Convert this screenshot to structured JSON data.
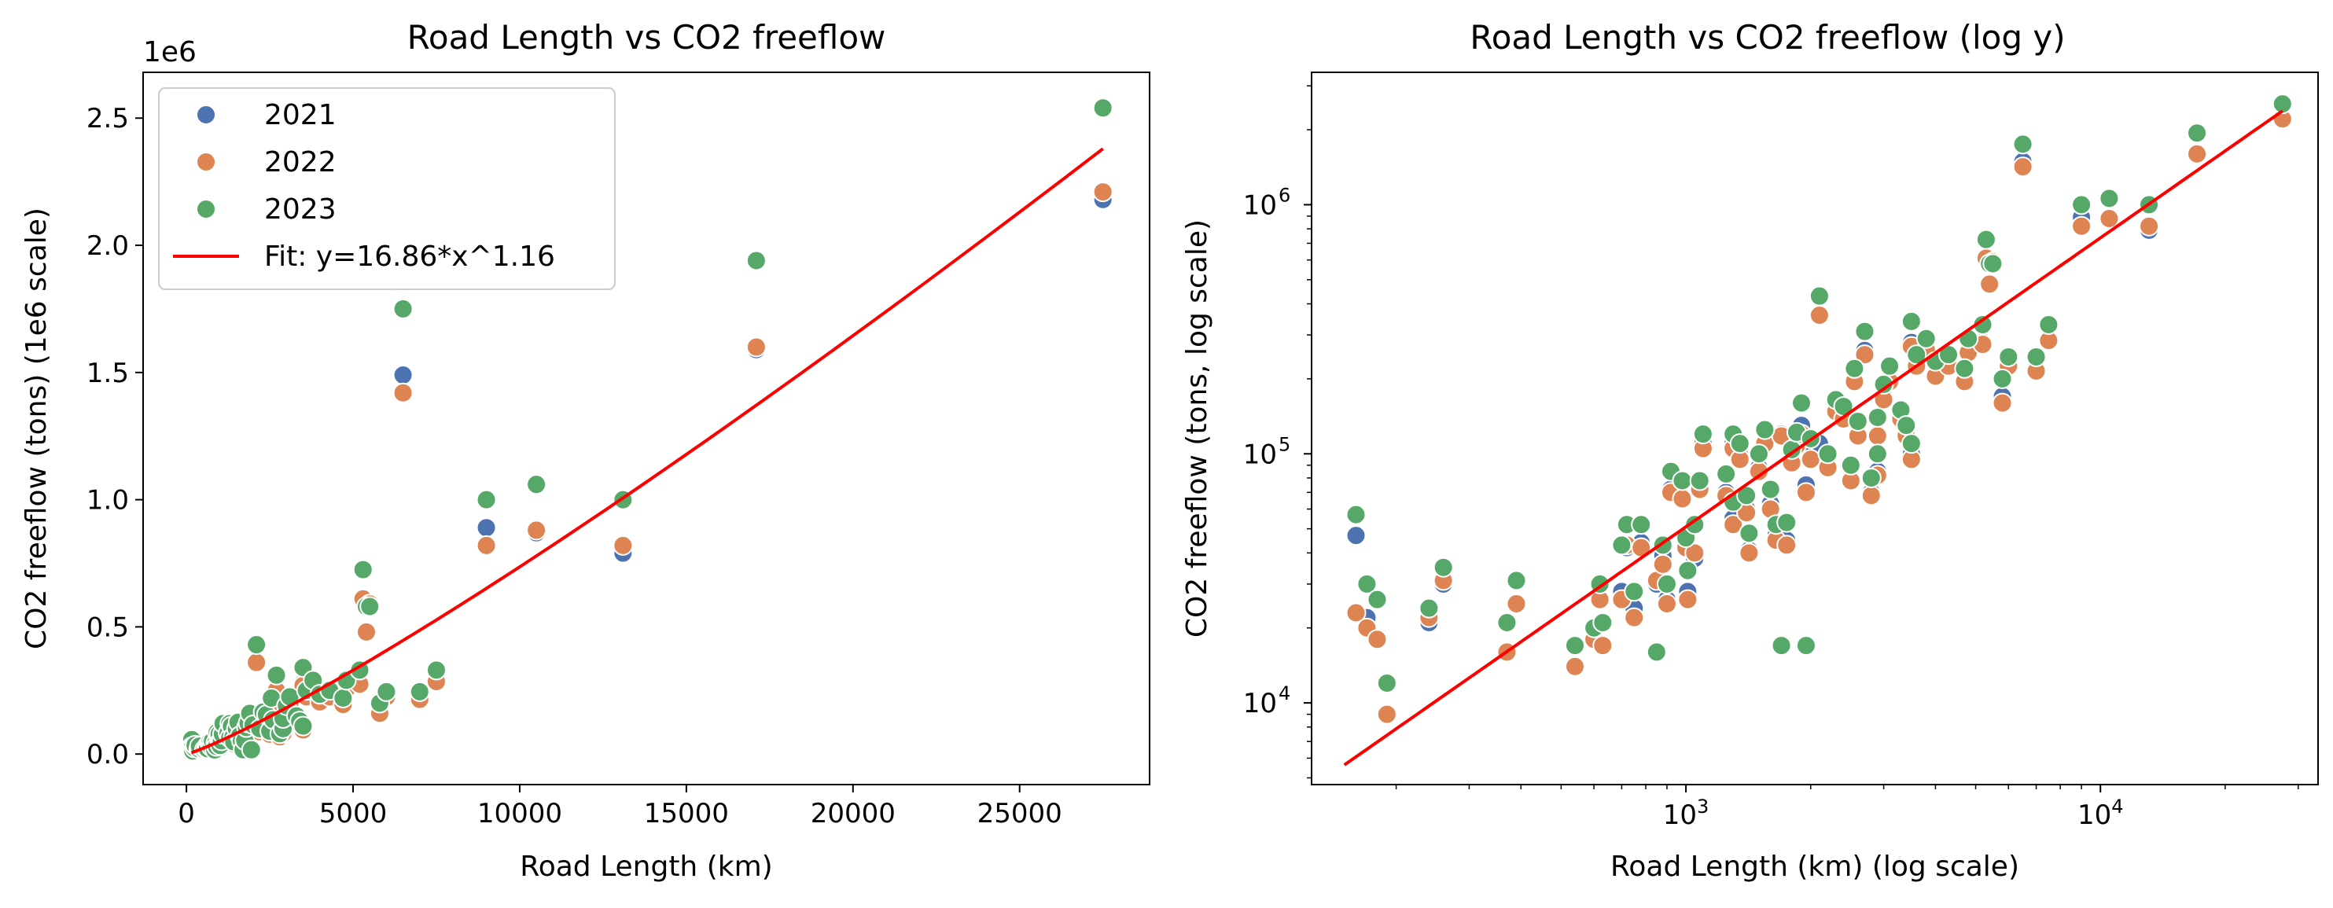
{
  "colors": {
    "2021": "#4c72b0",
    "2022": "#dd8452",
    "2023": "#55a868",
    "fit": "#ff0000"
  },
  "chart_data": [
    {
      "type": "scatter",
      "title": "Road Length vs CO2 freeflow",
      "xlabel": "Road Length (km)",
      "ylabel": "CO2 freeflow (tons) (1e6 scale)",
      "y_offset_label": "1e6",
      "xscale": "linear",
      "yscale": "linear",
      "xlim": [
        -1300,
        28900
      ],
      "ylim": [
        -0.12,
        2.68
      ],
      "xticks": [
        0,
        5000,
        10000,
        15000,
        20000,
        25000
      ],
      "xtick_labels": [
        "0",
        "5000",
        "10000",
        "15000",
        "20000",
        "25000"
      ],
      "yticks": [
        0,
        0.5,
        1.0,
        1.5,
        2.0,
        2.5
      ],
      "ytick_labels": [
        "0.0",
        "0.5",
        "1.0",
        "1.5",
        "2.0",
        "2.5"
      ],
      "y_units": "millions",
      "grid": false,
      "legend": {
        "position": "upper left",
        "entries": [
          "2021",
          "2022",
          "2023",
          "Fit: y=16.86*x^1.16"
        ]
      },
      "fit": {
        "label": "Fit: y=16.86*x^1.16",
        "a": 16.86,
        "b": 1.16,
        "x_range": [
          150,
          27500
        ]
      },
      "series": [
        {
          "name": "2021",
          "points": [
            [
              160,
              0.047
            ],
            [
              170,
              0.022
            ],
            [
              180,
              0.018
            ],
            [
              190,
              0.009
            ],
            [
              240,
              0.021
            ],
            [
              260,
              0.03
            ],
            [
              370,
              0.016
            ],
            [
              390,
              0.025
            ],
            [
              540,
              0.014
            ],
            [
              600,
              0.018
            ],
            [
              620,
              0.03
            ],
            [
              630,
              0.021
            ],
            [
              700,
              0.028
            ],
            [
              720,
              0.042
            ],
            [
              750,
              0.024
            ],
            [
              780,
              0.044
            ],
            [
              850,
              0.03
            ],
            [
              880,
              0.039
            ],
            [
              900,
              0.026
            ],
            [
              920,
              0.072
            ],
            [
              980,
              0.066
            ],
            [
              1000,
              0.045
            ],
            [
              1010,
              0.028
            ],
            [
              1050,
              0.038
            ],
            [
              1080,
              0.074
            ],
            [
              1100,
              0.11
            ],
            [
              1250,
              0.07
            ],
            [
              1300,
              0.055
            ],
            [
              1300,
              0.11
            ],
            [
              1350,
              0.098
            ],
            [
              1400,
              0.06
            ],
            [
              1420,
              0.041
            ],
            [
              1500,
              0.088
            ],
            [
              1550,
              0.108
            ],
            [
              1600,
              0.063
            ],
            [
              1650,
              0.047
            ],
            [
              1700,
              0.12
            ],
            [
              1750,
              0.045
            ],
            [
              1800,
              0.095
            ],
            [
              1850,
              0.11
            ],
            [
              1900,
              0.13
            ],
            [
              1950,
              0.075
            ],
            [
              2000,
              0.1
            ],
            [
              2100,
              0.11
            ],
            [
              2200,
              0.09
            ],
            [
              2300,
              0.15
            ],
            [
              2400,
              0.14
            ],
            [
              2500,
              0.08
            ],
            [
              2550,
              0.2
            ],
            [
              2600,
              0.12
            ],
            [
              2700,
              0.26
            ],
            [
              2800,
              0.07
            ],
            [
              2900,
              0.085
            ],
            [
              2900,
              0.12
            ],
            [
              3000,
              0.17
            ],
            [
              3100,
              0.2
            ],
            [
              3300,
              0.14
            ],
            [
              3400,
              0.12
            ],
            [
              3500,
              0.1
            ],
            [
              3500,
              0.28
            ],
            [
              3600,
              0.23
            ],
            [
              3800,
              0.27
            ],
            [
              4000,
              0.21
            ],
            [
              4300,
              0.23
            ],
            [
              4700,
              0.2
            ],
            [
              4800,
              0.26
            ],
            [
              5200,
              0.28
            ],
            [
              5300,
              0.6
            ],
            [
              5400,
              0.48
            ],
            [
              5500,
              0.58
            ],
            [
              5800,
              0.17
            ],
            [
              6000,
              0.23
            ],
            [
              6500,
              1.49
            ],
            [
              7000,
              0.22
            ],
            [
              7500,
              0.29
            ],
            [
              9000,
              0.89
            ],
            [
              10500,
              0.87
            ],
            [
              13100,
              0.79
            ],
            [
              17100,
              1.59
            ],
            [
              27500,
              2.18
            ]
          ]
        },
        {
          "name": "2022",
          "points": [
            [
              160,
              0.023
            ],
            [
              170,
              0.02
            ],
            [
              180,
              0.018
            ],
            [
              190,
              0.009
            ],
            [
              240,
              0.022
            ],
            [
              260,
              0.031
            ],
            [
              370,
              0.016
            ],
            [
              390,
              0.025
            ],
            [
              540,
              0.014
            ],
            [
              600,
              0.018
            ],
            [
              620,
              0.026
            ],
            [
              630,
              0.017
            ],
            [
              700,
              0.026
            ],
            [
              720,
              0.043
            ],
            [
              750,
              0.022
            ],
            [
              780,
              0.042
            ],
            [
              850,
              0.031
            ],
            [
              880,
              0.036
            ],
            [
              900,
              0.025
            ],
            [
              920,
              0.07
            ],
            [
              980,
              0.066
            ],
            [
              1000,
              0.042
            ],
            [
              1010,
              0.026
            ],
            [
              1050,
              0.04
            ],
            [
              1080,
              0.072
            ],
            [
              1100,
              0.105
            ],
            [
              1250,
              0.068
            ],
            [
              1300,
              0.052
            ],
            [
              1300,
              0.105
            ],
            [
              1350,
              0.095
            ],
            [
              1400,
              0.058
            ],
            [
              1420,
              0.04
            ],
            [
              1500,
              0.085
            ],
            [
              1550,
              0.11
            ],
            [
              1600,
              0.06
            ],
            [
              1650,
              0.045
            ],
            [
              1700,
              0.118
            ],
            [
              1750,
              0.043
            ],
            [
              1800,
              0.092
            ],
            [
              1850,
              0.108
            ],
            [
              1900,
              0.12
            ],
            [
              1950,
              0.07
            ],
            [
              2000,
              0.095
            ],
            [
              2100,
              0.36
            ],
            [
              2200,
              0.088
            ],
            [
              2300,
              0.148
            ],
            [
              2400,
              0.138
            ],
            [
              2500,
              0.078
            ],
            [
              2550,
              0.195
            ],
            [
              2600,
              0.118
            ],
            [
              2700,
              0.25
            ],
            [
              2800,
              0.068
            ],
            [
              2900,
              0.082
            ],
            [
              2900,
              0.118
            ],
            [
              3000,
              0.165
            ],
            [
              3100,
              0.195
            ],
            [
              3300,
              0.138
            ],
            [
              3400,
              0.118
            ],
            [
              3500,
              0.095
            ],
            [
              3500,
              0.27
            ],
            [
              3600,
              0.225
            ],
            [
              3800,
              0.262
            ],
            [
              4000,
              0.205
            ],
            [
              4300,
              0.225
            ],
            [
              4700,
              0.195
            ],
            [
              4800,
              0.255
            ],
            [
              5200,
              0.275
            ],
            [
              5300,
              0.61
            ],
            [
              5400,
              0.48
            ],
            [
              5500,
              0.59
            ],
            [
              5800,
              0.16
            ],
            [
              6000,
              0.225
            ],
            [
              6500,
              1.42
            ],
            [
              7000,
              0.215
            ],
            [
              7500,
              0.285
            ],
            [
              9000,
              0.82
            ],
            [
              10500,
              0.88
            ],
            [
              13100,
              0.82
            ],
            [
              17100,
              1.6
            ],
            [
              27500,
              2.21
            ]
          ]
        },
        {
          "name": "2023",
          "points": [
            [
              160,
              0.057
            ],
            [
              170,
              0.03
            ],
            [
              180,
              0.026
            ],
            [
              190,
              0.012
            ],
            [
              240,
              0.024
            ],
            [
              260,
              0.035
            ],
            [
              370,
              0.021
            ],
            [
              390,
              0.031
            ],
            [
              540,
              0.017
            ],
            [
              600,
              0.02
            ],
            [
              620,
              0.03
            ],
            [
              630,
              0.021
            ],
            [
              700,
              0.043
            ],
            [
              720,
              0.052
            ],
            [
              750,
              0.028
            ],
            [
              780,
              0.052
            ],
            [
              850,
              0.016
            ],
            [
              880,
              0.043
            ],
            [
              900,
              0.03
            ],
            [
              920,
              0.085
            ],
            [
              980,
              0.078
            ],
            [
              1000,
              0.046
            ],
            [
              1010,
              0.034
            ],
            [
              1050,
              0.052
            ],
            [
              1080,
              0.078
            ],
            [
              1100,
              0.12
            ],
            [
              1250,
              0.083
            ],
            [
              1300,
              0.064
            ],
            [
              1300,
              0.12
            ],
            [
              1350,
              0.11
            ],
            [
              1400,
              0.068
            ],
            [
              1420,
              0.048
            ],
            [
              1500,
              0.1
            ],
            [
              1550,
              0.125
            ],
            [
              1600,
              0.072
            ],
            [
              1650,
              0.052
            ],
            [
              1700,
              0.017
            ],
            [
              1750,
              0.053
            ],
            [
              1800,
              0.104
            ],
            [
              1850,
              0.122
            ],
            [
              1900,
              0.16
            ],
            [
              1950,
              0.017
            ],
            [
              2000,
              0.115
            ],
            [
              2100,
              0.43
            ],
            [
              2200,
              0.1
            ],
            [
              2300,
              0.165
            ],
            [
              2400,
              0.155
            ],
            [
              2500,
              0.09
            ],
            [
              2550,
              0.22
            ],
            [
              2600,
              0.135
            ],
            [
              2700,
              0.31
            ],
            [
              2800,
              0.08
            ],
            [
              2900,
              0.1
            ],
            [
              2900,
              0.14
            ],
            [
              3000,
              0.19
            ],
            [
              3100,
              0.225
            ],
            [
              3300,
              0.15
            ],
            [
              3400,
              0.13
            ],
            [
              3500,
              0.11
            ],
            [
              3500,
              0.34
            ],
            [
              3600,
              0.25
            ],
            [
              3800,
              0.29
            ],
            [
              4000,
              0.235
            ],
            [
              4300,
              0.25
            ],
            [
              4700,
              0.22
            ],
            [
              4800,
              0.29
            ],
            [
              5200,
              0.33
            ],
            [
              5300,
              0.725
            ],
            [
              5400,
              0.58
            ],
            [
              5500,
              0.58
            ],
            [
              5800,
              0.2
            ],
            [
              6000,
              0.245
            ],
            [
              6500,
              1.75
            ],
            [
              7000,
              0.245
            ],
            [
              7500,
              0.33
            ],
            [
              9000,
              1.0
            ],
            [
              10500,
              1.06
            ],
            [
              13100,
              1.0
            ],
            [
              17100,
              1.94
            ],
            [
              27500,
              2.54
            ]
          ]
        }
      ]
    },
    {
      "type": "scatter",
      "title": "Road Length vs CO2 freeflow (log y)",
      "xlabel": "Road Length (km) (log scale)",
      "ylabel": "CO2 freeflow (tons, log scale)",
      "xscale": "log",
      "yscale": "log",
      "xlim": [
        125,
        33500
      ],
      "ylim": [
        4700,
        3400000
      ],
      "xticks": [
        1000,
        10000
      ],
      "xtick_labels": [
        "10",
        "10"
      ],
      "xtick_exps": [
        "3",
        "4"
      ],
      "yticks": [
        10000,
        100000,
        1000000
      ],
      "ytick_labels": [
        "10",
        "10",
        "10"
      ],
      "ytick_exps": [
        "4",
        "5",
        "6"
      ],
      "y_units": "tons",
      "grid": false,
      "fit": {
        "a": 16.86,
        "b": 1.16,
        "x_range": [
          150,
          27500
        ]
      },
      "series_ref": "same data as left panel (values in millions of tons)"
    }
  ]
}
